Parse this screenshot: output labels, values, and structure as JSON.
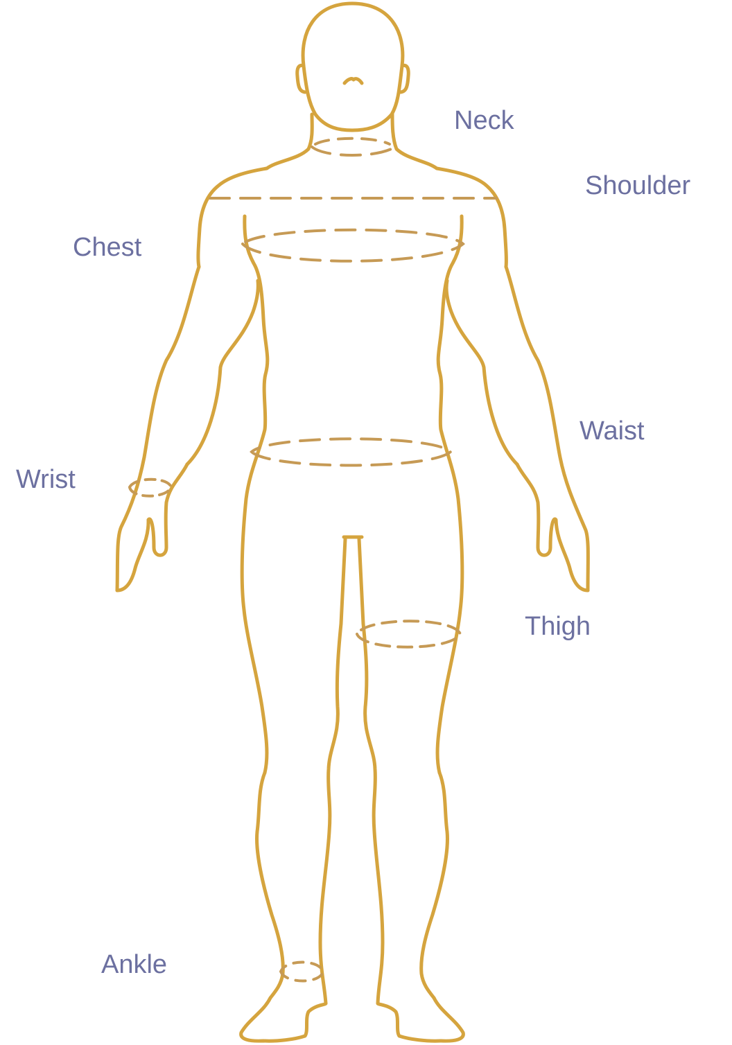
{
  "colors": {
    "outline": "#D5A43E",
    "measure_line": "#C69A55",
    "label_text": "#6C70A0",
    "background": "#FFFFFF"
  },
  "labels": {
    "neck": "Neck",
    "shoulder": "Shoulder",
    "chest": "Chest",
    "waist": "Waist",
    "wrist": "Wrist",
    "thigh": "Thigh",
    "ankle": "Ankle"
  }
}
